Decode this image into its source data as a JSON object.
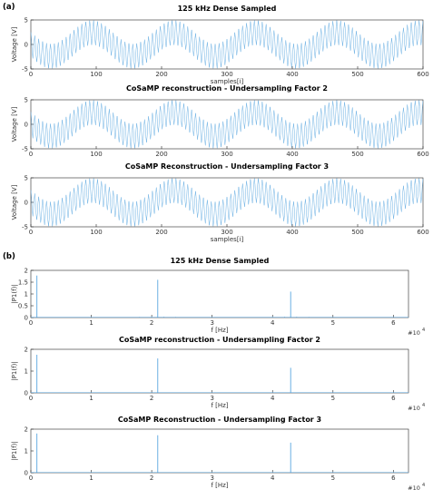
{
  "colors": {
    "trace": "#5aa7e0",
    "axis": "#262626",
    "background": "#ffffff"
  },
  "panel_a_label": "(a)",
  "panel_b_label": "(b)",
  "chart_data": [
    {
      "type": "line",
      "title": "125 kHz Dense Sampled",
      "xlabel": "samples[i]",
      "ylabel": "Voltage [V]",
      "xlim": [
        0,
        600
      ],
      "ylim": [
        -5,
        5
      ],
      "xticks": [
        0,
        100,
        200,
        300,
        400,
        500,
        600
      ],
      "yticks": [
        -5,
        0,
        5
      ],
      "grid": false,
      "signal": {
        "slow_amplitude": 2.4,
        "slow_period_samples": 125,
        "slow_phase_deg": 180,
        "fast_amplitude": 2.5,
        "fast_period_samples": 6,
        "fast_phase_deg": 90
      },
      "series": [
        {
          "values": []
        }
      ]
    },
    {
      "type": "line",
      "title": "CoSaMP reconstruction - Undersampling Factor 2",
      "xlabel": "",
      "ylabel": "Voltage [V]",
      "xlim": [
        0,
        600
      ],
      "ylim": [
        -5,
        5
      ],
      "xticks": [
        0,
        100,
        200,
        300,
        400,
        500,
        600
      ],
      "yticks": [
        -5,
        0,
        5
      ],
      "grid": false,
      "signal": {
        "slow_amplitude": 2.4,
        "slow_period_samples": 125,
        "slow_phase_deg": 180,
        "fast_amplitude": 2.5,
        "fast_period_samples": 6,
        "fast_phase_deg": 90
      },
      "series": [
        {
          "values": []
        }
      ]
    },
    {
      "type": "line",
      "title": "CoSaMP Reconstruction - Undersampling Factor 3",
      "xlabel": "samples[i]",
      "ylabel": "Voltage [V]",
      "xlim": [
        0,
        600
      ],
      "ylim": [
        -5,
        5
      ],
      "xticks": [
        0,
        100,
        200,
        300,
        400,
        500,
        600
      ],
      "yticks": [
        -5,
        0,
        5
      ],
      "grid": false,
      "signal": {
        "slow_amplitude": 2.4,
        "slow_period_samples": 125,
        "slow_phase_deg": 180,
        "fast_amplitude": 2.5,
        "fast_period_samples": 6,
        "fast_phase_deg": 90
      },
      "series": [
        {
          "values": []
        }
      ]
    },
    {
      "type": "line",
      "title": "125 kHz Dense Sampled",
      "xlabel": "f [Hz]",
      "ylabel": "|P1(f)|",
      "x_exponent_label": "#10",
      "x_exponent_power": "4",
      "x_multiplier": 10000,
      "xlim": [
        0,
        62500
      ],
      "ylim": [
        0,
        2
      ],
      "xticks": [
        0,
        1,
        2,
        3,
        4,
        5,
        6
      ],
      "yticks": [
        0,
        0.5,
        1,
        1.5,
        2
      ],
      "grid": false,
      "peaks": [
        {
          "f": 1000,
          "amplitude": 1.78
        },
        {
          "f": 21000,
          "amplitude": 1.6
        },
        {
          "f": 43000,
          "amplitude": 1.1
        }
      ],
      "sidebands": [
        {
          "f": 18000,
          "amplitude": 0.03
        },
        {
          "f": 20000,
          "amplitude": 0.04
        },
        {
          "f": 22000,
          "amplitude": 0.04
        },
        {
          "f": 24000,
          "amplitude": 0.03
        },
        {
          "f": 40000,
          "amplitude": 0.03
        },
        {
          "f": 42000,
          "amplitude": 0.04
        },
        {
          "f": 44000,
          "amplitude": 0.04
        },
        {
          "f": 46000,
          "amplitude": 0.03
        }
      ]
    },
    {
      "type": "line",
      "title": "CoSaMP reconstruction - Undersampling Factor 2",
      "xlabel": "f [Hz]",
      "ylabel": "|P1(f)|",
      "x_exponent_label": "#10",
      "x_exponent_power": "4",
      "x_multiplier": 10000,
      "xlim": [
        0,
        62500
      ],
      "ylim": [
        0,
        2
      ],
      "xticks": [
        0,
        1,
        2,
        3,
        4,
        5,
        6
      ],
      "yticks": [
        0,
        1,
        2
      ],
      "grid": false,
      "peaks": [
        {
          "f": 1000,
          "amplitude": 1.75
        },
        {
          "f": 21000,
          "amplitude": 1.58
        },
        {
          "f": 43000,
          "amplitude": 1.15
        }
      ],
      "sidebands": []
    },
    {
      "type": "line",
      "title": "CoSaMP Reconstruction - Undersampling Factor 3",
      "xlabel": "f [Hz]",
      "ylabel": "|P1(f)|",
      "x_exponent_label": "#10",
      "x_exponent_power": "4",
      "x_multiplier": 10000,
      "xlim": [
        0,
        62500
      ],
      "ylim": [
        0,
        2
      ],
      "xticks": [
        0,
        1,
        2,
        3,
        4,
        5,
        6
      ],
      "yticks": [
        0,
        1,
        2
      ],
      "grid": false,
      "peaks": [
        {
          "f": 1000,
          "amplitude": 1.8
        },
        {
          "f": 21000,
          "amplitude": 1.72
        },
        {
          "f": 43000,
          "amplitude": 1.38
        }
      ],
      "sidebands": []
    }
  ]
}
